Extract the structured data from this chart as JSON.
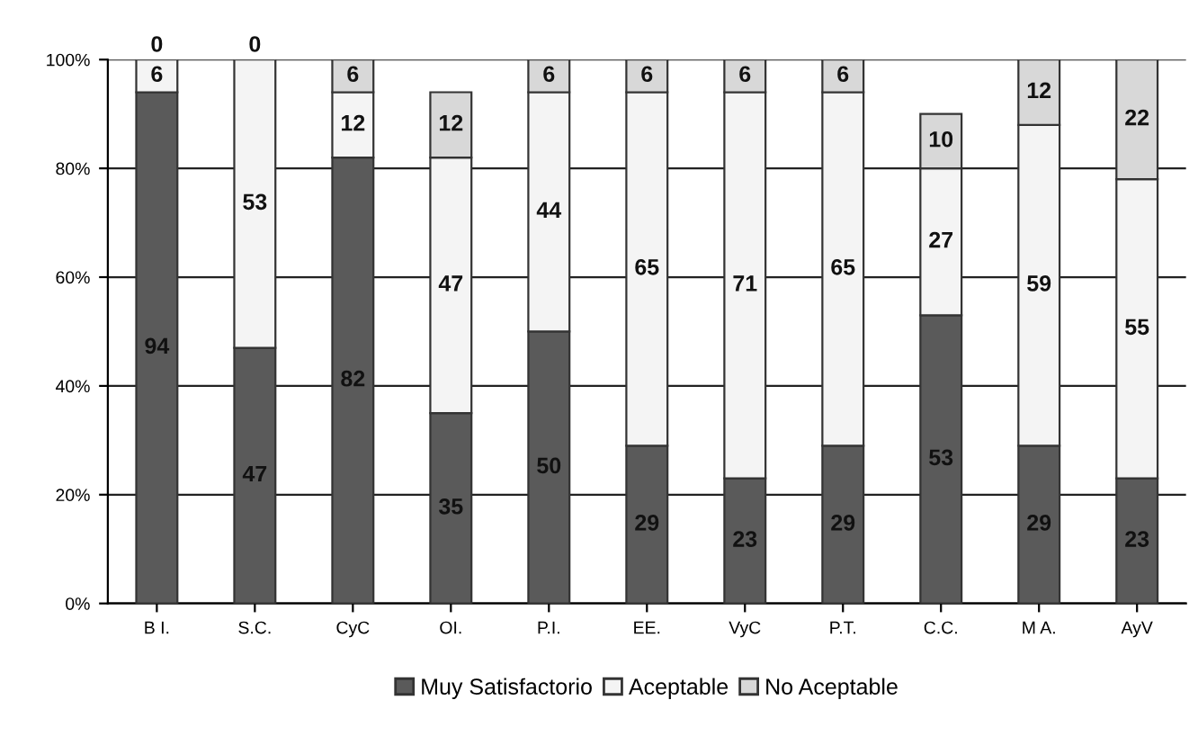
{
  "chart_data": {
    "type": "bar",
    "stacked": true,
    "categories": [
      "B I.",
      "S.C.",
      "CyC",
      "OI.",
      "P.I.",
      "EE.",
      "VyC",
      "P.T.",
      "C.C.",
      "M A.",
      "AyV"
    ],
    "series": [
      {
        "name": "Muy Satisfactorio",
        "color": "#5a5a5a",
        "values": [
          94,
          47,
          82,
          35,
          50,
          29,
          23,
          29,
          53,
          29,
          23
        ]
      },
      {
        "name": "Aceptable",
        "color": "#f4f4f4",
        "values": [
          6,
          53,
          12,
          47,
          44,
          65,
          71,
          65,
          27,
          59,
          55
        ]
      },
      {
        "name": "No Aceptable",
        "color": "#d8d8d8",
        "values": [
          0,
          0,
          6,
          12,
          6,
          6,
          6,
          6,
          10,
          12,
          22
        ]
      }
    ],
    "ylim": [
      0,
      100
    ],
    "yticks": [
      {
        "value": 0,
        "label": "0%"
      },
      {
        "value": 20,
        "label": "20%"
      },
      {
        "value": 40,
        "label": "40%"
      },
      {
        "value": 60,
        "label": "60%"
      },
      {
        "value": 80,
        "label": "80%"
      },
      {
        "value": 100,
        "label": "100%"
      }
    ],
    "grid": "y",
    "legend": "bottom",
    "data_labels": true
  }
}
